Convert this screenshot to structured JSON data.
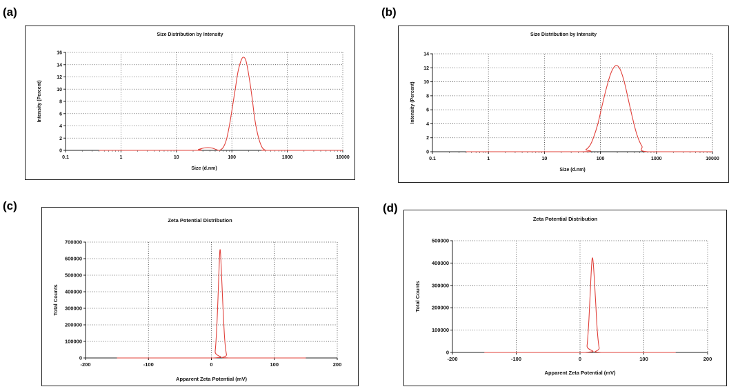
{
  "panels": [
    {
      "letter": "(a)"
    },
    {
      "letter": "(b)"
    },
    {
      "letter": "(c)"
    },
    {
      "letter": "(d)"
    }
  ],
  "chart_data": [
    {
      "type": "line",
      "title": "Size Distribution by Intensity",
      "xlabel": "Size (d.nm)",
      "ylabel": "Intensity (Percent)",
      "xscale": "log",
      "xlim": [
        0.1,
        10000
      ],
      "ylim": [
        0,
        16
      ],
      "xticks": [
        0.1,
        1,
        10,
        100,
        1000,
        10000
      ],
      "xtick_labels": [
        "0.1",
        "1",
        "10",
        "100",
        "1000",
        "10000"
      ],
      "yticks": [
        0,
        2,
        4,
        6,
        8,
        10,
        12,
        14,
        16
      ],
      "ytick_labels": [
        "0",
        "2",
        "4",
        "6",
        "8",
        "10",
        "12",
        "14",
        "16"
      ],
      "grid": true,
      "line_color": "#e0403a",
      "series": [
        {
          "x": [
            0.4,
            20,
            25,
            30,
            37,
            45,
            55,
            60,
            70,
            80,
            90,
            100,
            115,
            130,
            150,
            165,
            180,
            200,
            230,
            260,
            300,
            350,
            400,
            450,
            10000
          ],
          "y": [
            0,
            0,
            0.15,
            0.35,
            0.45,
            0.35,
            0.05,
            0,
            0.5,
            1.8,
            4.0,
            6.5,
            10.0,
            13.0,
            14.9,
            15.2,
            14.6,
            12.5,
            8.8,
            5.0,
            2.2,
            0.5,
            0.05,
            0,
            0
          ]
        }
      ]
    },
    {
      "type": "line",
      "title": "Size Distribution by Intensity",
      "xlabel": "Size (d.nm)",
      "ylabel": "Intensity (Percent)",
      "xscale": "log",
      "xlim": [
        0.1,
        10000
      ],
      "ylim": [
        0,
        14
      ],
      "xticks": [
        0.1,
        1,
        10,
        100,
        1000,
        10000
      ],
      "xtick_labels": [
        "0.1",
        "1",
        "10",
        "100",
        "1000",
        "10000"
      ],
      "yticks": [
        0,
        2,
        4,
        6,
        8,
        10,
        12,
        14
      ],
      "ytick_labels": [
        "0",
        "2",
        "4",
        "6",
        "8",
        "10",
        "12",
        "14"
      ],
      "grid": true,
      "line_color": "#e0403a",
      "series": [
        {
          "x": [
            0.4,
            45,
            55,
            65,
            75,
            90,
            105,
            125,
            150,
            175,
            200,
            230,
            270,
            320,
            380,
            450,
            550,
            700,
            10000
          ],
          "y": [
            0,
            0,
            0.3,
            0.9,
            2.0,
            4.0,
            6.3,
            8.8,
            11.0,
            12.1,
            12.3,
            11.6,
            9.8,
            7.2,
            4.6,
            2.4,
            0.8,
            0,
            0
          ]
        }
      ]
    },
    {
      "type": "line",
      "title": "Zeta Potential Distribution",
      "xlabel": "Apparent Zeta Potential (mV)",
      "ylabel": "Total Counts",
      "xscale": "linear",
      "xlim": [
        -200,
        200
      ],
      "ylim": [
        0,
        700000
      ],
      "xticks": [
        -200,
        -100,
        0,
        100,
        200
      ],
      "xtick_labels": [
        "-200",
        "-100",
        "0",
        "100",
        "200"
      ],
      "yticks": [
        0,
        100000,
        200000,
        300000,
        400000,
        500000,
        600000,
        700000
      ],
      "ytick_labels": [
        "0",
        "100000",
        "200000",
        "300000",
        "400000",
        "500000",
        "600000",
        "700000"
      ],
      "grid": true,
      "line_color": "#e0403a",
      "series": [
        {
          "x": [
            -150,
            3,
            6,
            9,
            12,
            13.5,
            15,
            18,
            21,
            24,
            27,
            150
          ],
          "y": [
            0,
            0,
            40000,
            220000,
            520000,
            650000,
            600000,
            340000,
            120000,
            20000,
            0,
            0
          ]
        }
      ]
    },
    {
      "type": "line",
      "title": "Zeta Potential Distribution",
      "xlabel": "Apparent Zeta Potential (mV)",
      "ylabel": "Total Counts",
      "xscale": "linear",
      "xlim": [
        -200,
        200
      ],
      "ylim": [
        0,
        500000
      ],
      "xticks": [
        -200,
        -100,
        0,
        100,
        200
      ],
      "xtick_labels": [
        "-200",
        "-100",
        "0",
        "100",
        "200"
      ],
      "yticks": [
        0,
        100000,
        200000,
        300000,
        400000,
        500000
      ],
      "ytick_labels": [
        "0",
        "100000",
        "200000",
        "300000",
        "400000",
        "500000"
      ],
      "grid": true,
      "line_color": "#e0403a",
      "series": [
        {
          "x": [
            -150,
            8,
            11,
            14,
            17,
            19,
            21,
            24,
            27,
            30,
            33,
            150
          ],
          "y": [
            0,
            0,
            30000,
            150000,
            330000,
            420000,
            390000,
            250000,
            100000,
            20000,
            0,
            0
          ]
        }
      ]
    }
  ]
}
